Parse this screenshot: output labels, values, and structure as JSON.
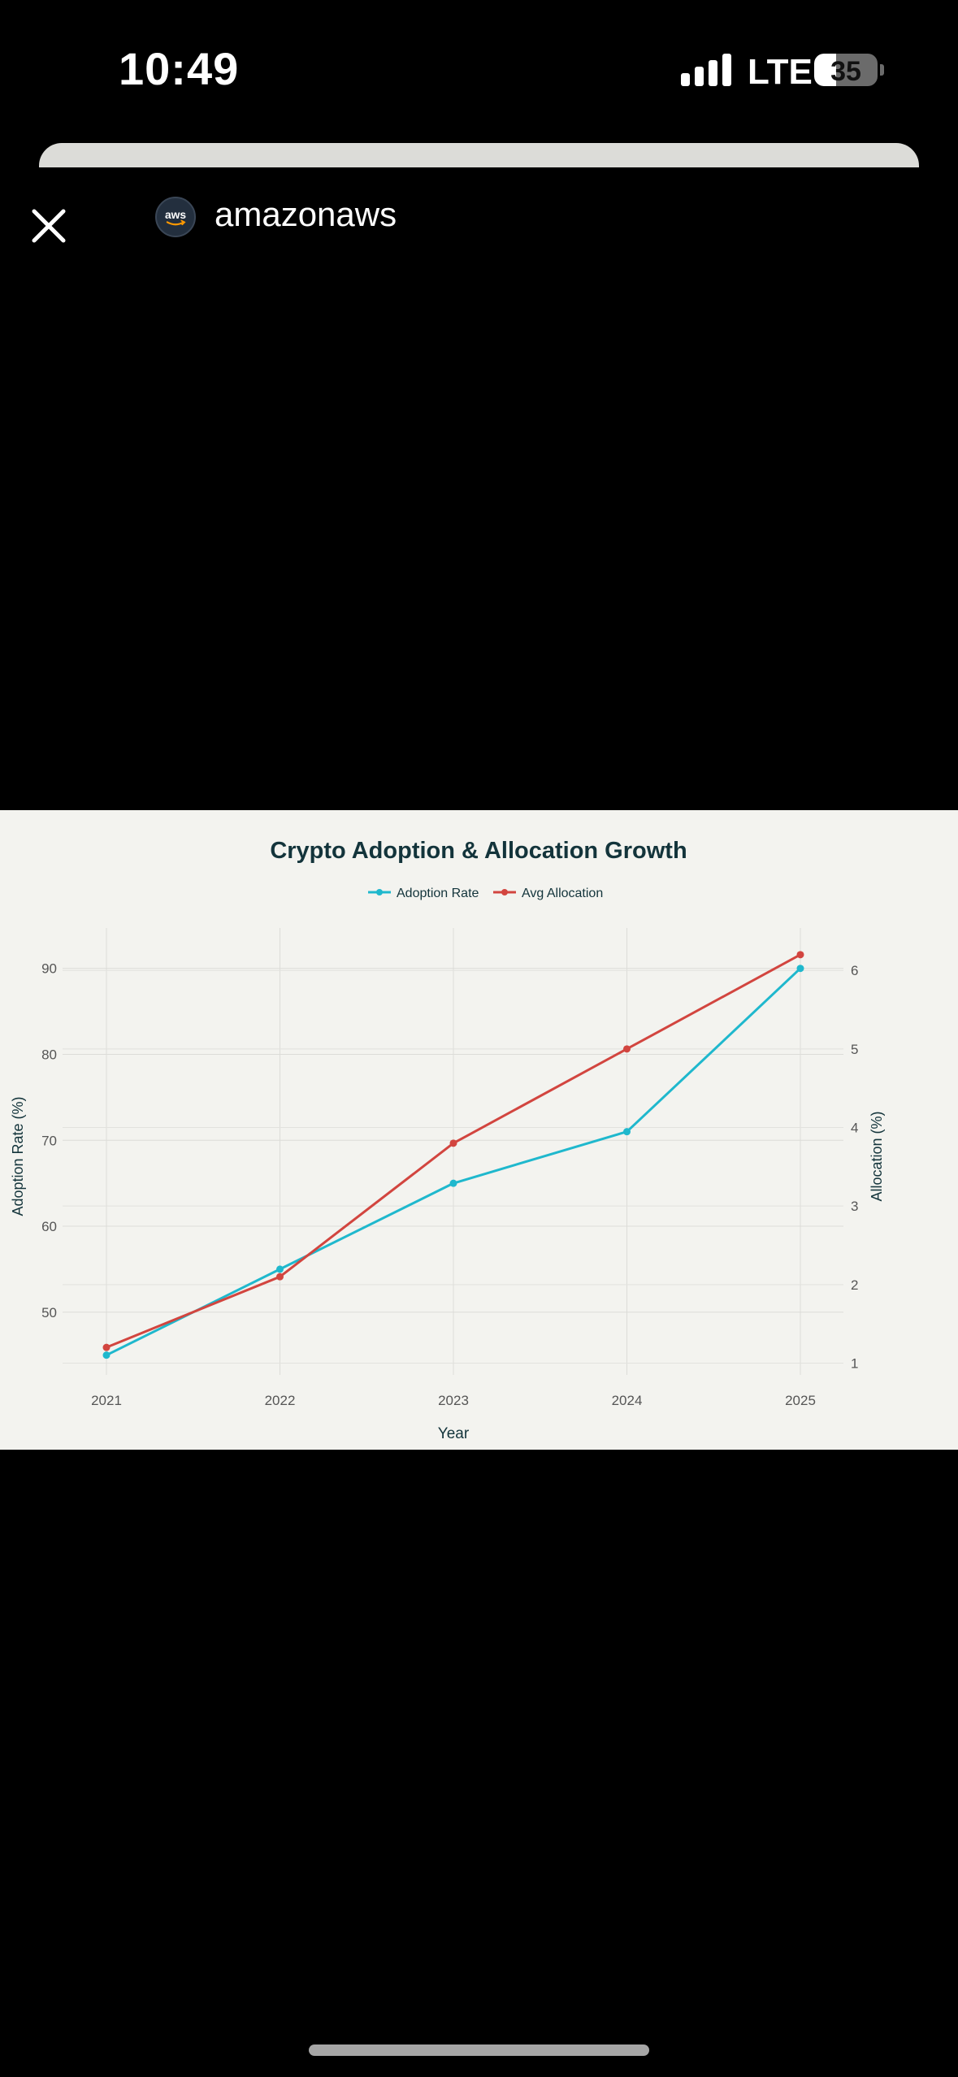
{
  "status_bar": {
    "time": "10:49",
    "network": "LTE",
    "battery_level": "35",
    "battery_fraction": 0.35,
    "signal_bars": 4
  },
  "browser": {
    "site_name": "amazonaws",
    "site_icon_text": "aws",
    "close_icon": "close-icon"
  },
  "chart_data": {
    "type": "line",
    "title": "Crypto Adoption & Allocation Growth",
    "xlabel": "Year",
    "ylabel": "Adoption Rate (%)",
    "y2label": "Allocation (%)",
    "categories": [
      "2021",
      "2022",
      "2023",
      "2024",
      "2025"
    ],
    "series": [
      {
        "name": "Adoption Rate",
        "axis": "left",
        "color": "#1fb8cd",
        "values": [
          45,
          55,
          65,
          71,
          90
        ]
      },
      {
        "name": "Avg Allocation",
        "axis": "right",
        "color": "#d2453f",
        "values": [
          1.2,
          2.1,
          3.8,
          5.0,
          6.2
        ]
      }
    ],
    "ylim": [
      42.7,
      94.7
    ],
    "y_ticks": [
      50,
      60,
      70,
      80,
      90
    ],
    "y2lim": [
      0.85,
      6.54
    ],
    "y2_ticks": [
      1,
      2,
      3,
      4,
      5,
      6
    ],
    "legend": "top-center",
    "grid": true
  }
}
